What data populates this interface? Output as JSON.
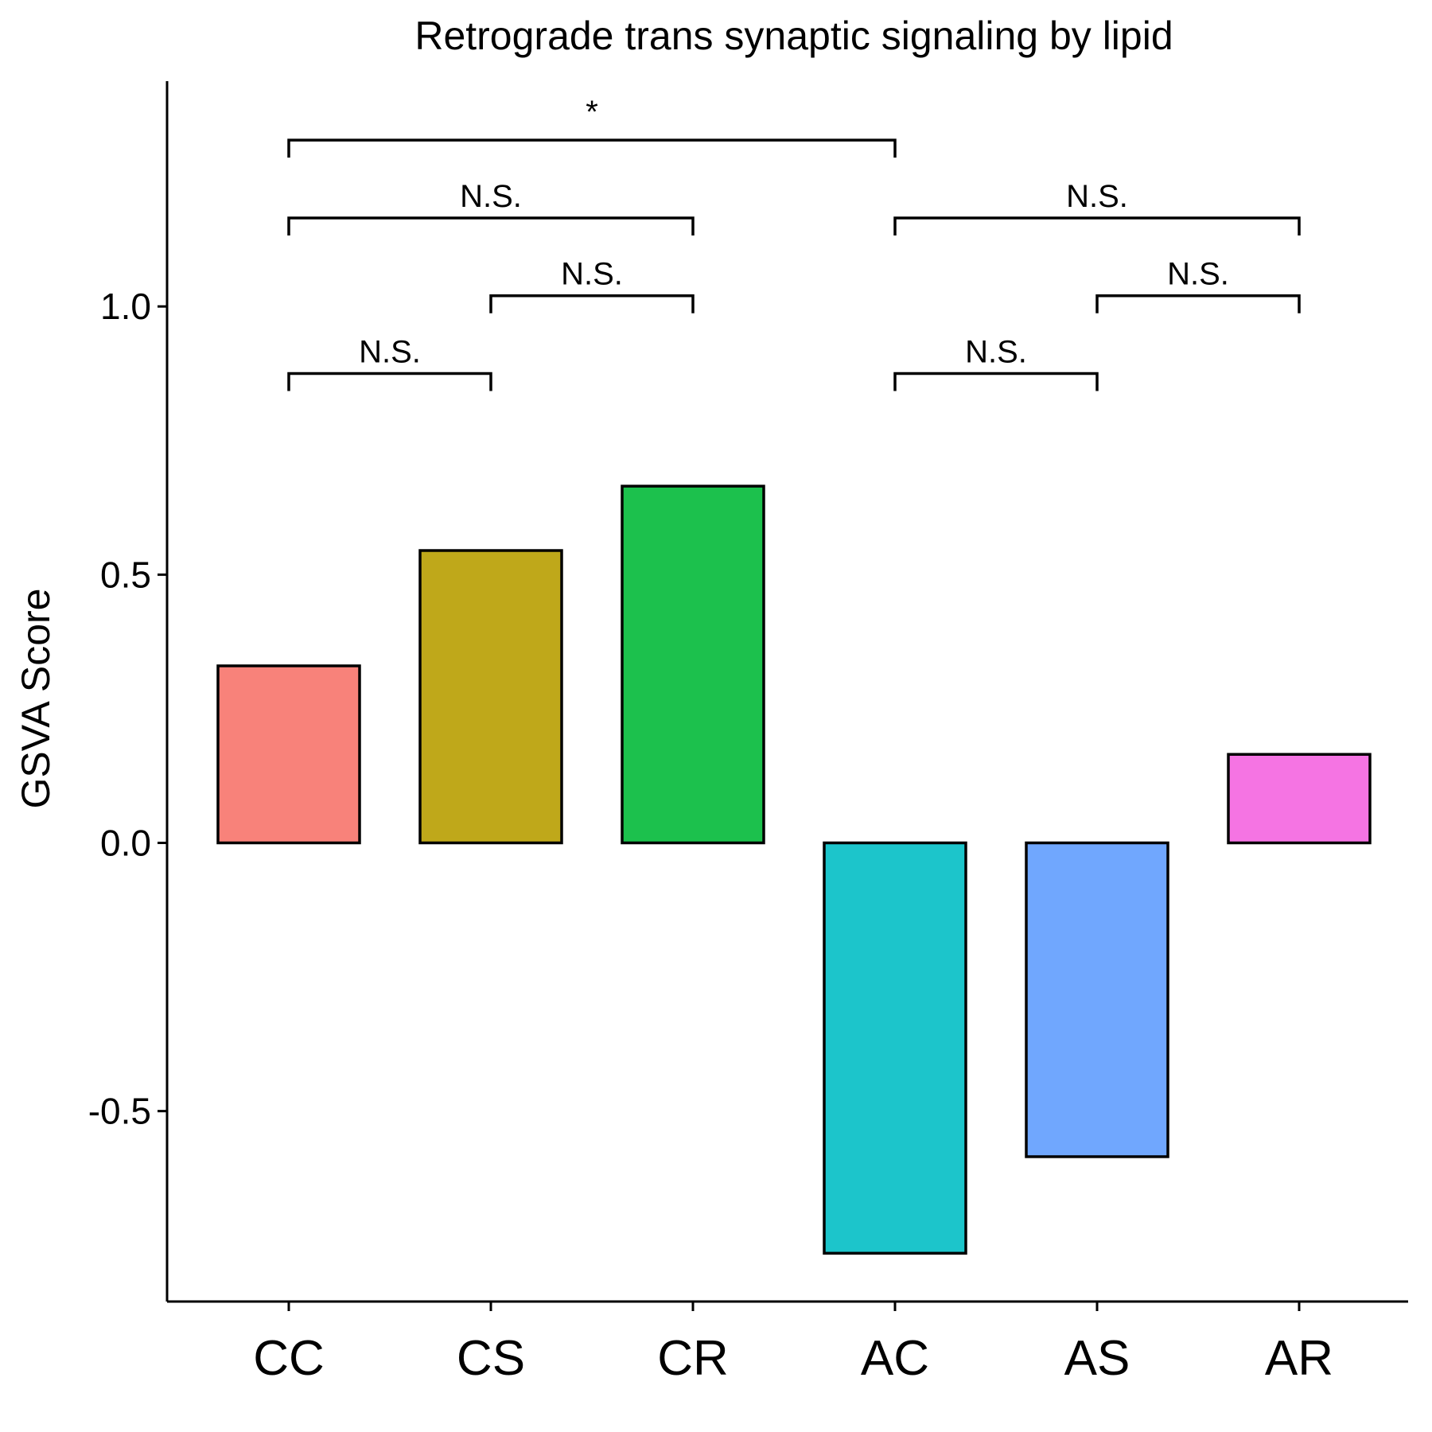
{
  "chart_data": {
    "type": "bar",
    "title": "Retrograde trans synaptic signaling by lipid",
    "xlabel": "",
    "ylabel": "GSVA Score",
    "categories": [
      "CC",
      "CS",
      "CR",
      "AC",
      "AS",
      "AR"
    ],
    "values": [
      0.33,
      0.545,
      0.665,
      -0.765,
      -0.585,
      0.165
    ],
    "colors": [
      "#F8827A",
      "#BFA81A",
      "#1CC14D",
      "#1CC5CB",
      "#70A7FE",
      "#F574E3"
    ],
    "ylim": [
      -0.855,
      1.42
    ],
    "yticks": [
      -0.5,
      0.0,
      0.5,
      1.0
    ],
    "ytick_labels": [
      "-0.5",
      "0.0",
      "0.5",
      "1.0"
    ],
    "grid": false,
    "legend": "none",
    "annotations": [
      {
        "from": "CC",
        "to": "CS",
        "y": 0.875,
        "label": "N.S."
      },
      {
        "from": "CS",
        "to": "CR",
        "y": 1.02,
        "label": "N.S."
      },
      {
        "from": "CC",
        "to": "CR",
        "y": 1.165,
        "label": "N.S."
      },
      {
        "from": "CC",
        "to": "AC",
        "y": 1.31,
        "label": "*"
      },
      {
        "from": "AC",
        "to": "AS",
        "y": 0.875,
        "label": "N.S."
      },
      {
        "from": "AS",
        "to": "AR",
        "y": 1.02,
        "label": "N.S."
      },
      {
        "from": "AC",
        "to": "AR",
        "y": 1.165,
        "label": "N.S."
      }
    ]
  }
}
